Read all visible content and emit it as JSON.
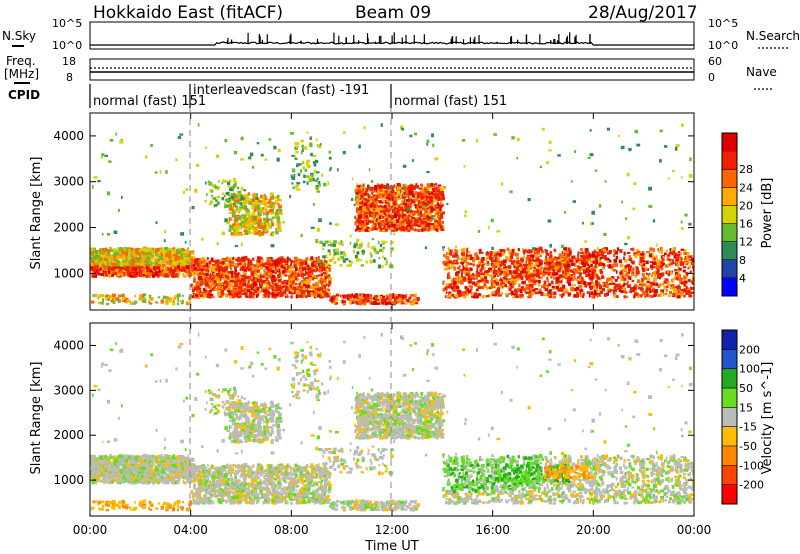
{
  "header": {
    "station": "Hokkaido East (fitACF)",
    "beam": "Beam 09",
    "date": "28/Aug/2017"
  },
  "status": {
    "nsky_label": "N.Sky",
    "nsearch_label": "N.Search",
    "noise_ticks": [
      "10^5",
      "10^0"
    ],
    "freq_label": "Freq.",
    "freq_unit": "[MHz]",
    "freq_ticks": [
      "18",
      "8"
    ],
    "nave_label": "Nave",
    "nave_ticks": [
      "60",
      "0"
    ],
    "cpid_label": "CPID",
    "modes": [
      {
        "label": "normal (fast)",
        "cpid": "151"
      },
      {
        "label": "interleavedscan (fast)",
        "cpid": "-191"
      },
      {
        "label": "normal (fast)",
        "cpid": "151"
      }
    ]
  },
  "colors": {
    "power": [
      "#0000ff",
      "#2244aa",
      "#2e8b57",
      "#66bb33",
      "#d4d400",
      "#ffaa00",
      "#ff6600",
      "#ee2200",
      "#dd0000"
    ],
    "velocity": [
      "#ff0000",
      "#ff4400",
      "#ff8800",
      "#ffbb00",
      "#bbbbbb",
      "#66dd22",
      "#22aa22",
      "#2255cc",
      "#1122aa"
    ]
  },
  "chart_data": [
    {
      "type": "heatmap",
      "name": "power",
      "ylabel": "Slant Range [km]",
      "ylim": [
        200,
        4500
      ],
      "yticks": [
        "1000",
        "2000",
        "3000",
        "4000"
      ],
      "xlim": [
        0,
        24
      ],
      "xtick_labels": [
        "00:00",
        "04:00",
        "08:00",
        "12:00",
        "16:00",
        "20:00",
        "00:00"
      ],
      "colorbar_label": "Power [dB]",
      "colorbar_ticks": [
        "4",
        "8",
        "12",
        "16",
        "20",
        "24",
        "28"
      ],
      "regions": [
        {
          "t": [
            0,
            4
          ],
          "r": [
            900,
            1500
          ],
          "value": "mixed"
        },
        {
          "t": [
            4,
            9.5
          ],
          "r": [
            400,
            1300
          ],
          "value": "high"
        },
        {
          "t": [
            5,
            7.5
          ],
          "r": [
            1800,
            2700
          ],
          "value": "mid"
        },
        {
          "t": [
            10.5,
            14
          ],
          "r": [
            1800,
            2900
          ],
          "value": "high"
        },
        {
          "t": [
            14,
            24
          ],
          "r": [
            400,
            1500
          ],
          "value": "high"
        }
      ]
    },
    {
      "type": "heatmap",
      "name": "velocity",
      "ylabel": "Slant Range [km]",
      "ylim": [
        200,
        4500
      ],
      "yticks": [
        "1000",
        "2000",
        "3000",
        "4000"
      ],
      "xlim": [
        0,
        24
      ],
      "xtick_labels": [
        "00:00",
        "04:00",
        "08:00",
        "12:00",
        "16:00",
        "20:00",
        "00:00"
      ],
      "xlabel": "Time UT",
      "colorbar_label": "Velocity [m s^-1]",
      "colorbar_ticks": [
        "-200",
        "-100",
        "-50",
        "-15",
        "15",
        "50",
        "100",
        "200"
      ],
      "regions": [
        {
          "t": [
            0,
            24
          ],
          "r": [
            400,
            1500
          ],
          "value": "near zero (grey)"
        },
        {
          "t": [
            14,
            18
          ],
          "r": [
            700,
            1500
          ],
          "value": "positive (green)"
        },
        {
          "t": [
            10.5,
            14
          ],
          "r": [
            1800,
            2900
          ],
          "value": "near zero (grey)"
        }
      ]
    }
  ]
}
